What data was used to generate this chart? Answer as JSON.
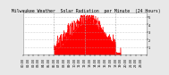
{
  "title": " Milwaukee Weather  Solar Radiation  per Minute  (24 Hours)",
  "background_color": "#e8e8e8",
  "plot_bg_color": "#ffffff",
  "grid_color": "#aaaaaa",
  "bar_color": "#ff0000",
  "yticks": [
    1,
    2,
    3,
    4,
    5
  ],
  "ylim": [
    0,
    5.5
  ],
  "xlim": [
    0,
    1440
  ],
  "dashed_vlines": [
    360,
    720,
    1080
  ],
  "title_fontsize": 3.5,
  "tick_fontsize": 2.5
}
